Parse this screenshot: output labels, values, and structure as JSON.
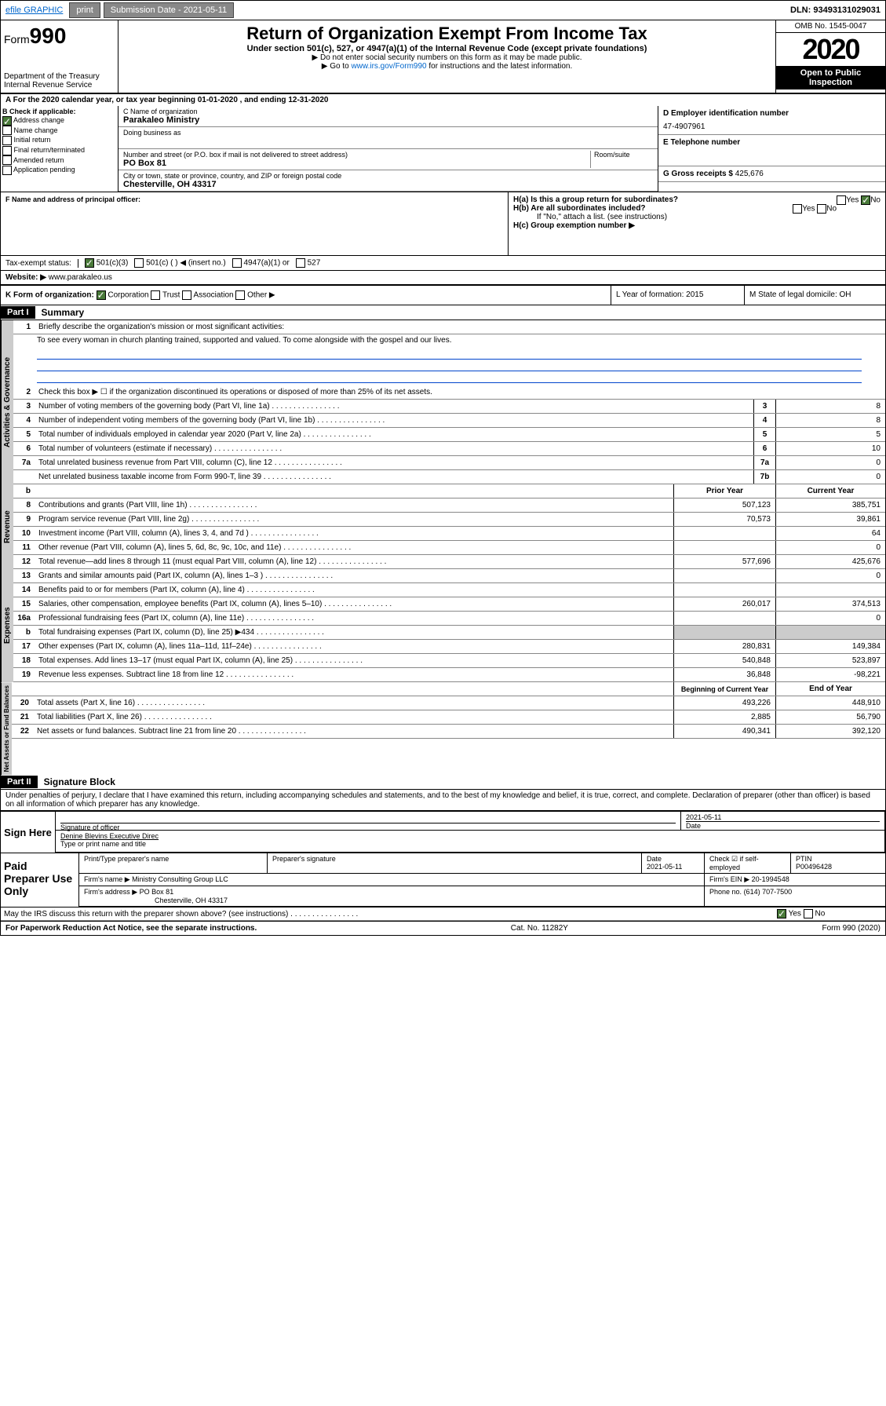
{
  "topbar": {
    "efile": "efile GRAPHIC",
    "print": "print",
    "subdate_label": "Submission Date - 2021-05-11",
    "dln": "DLN: 93493131029031"
  },
  "header": {
    "form_prefix": "Form",
    "form_num": "990",
    "dept": "Department of the Treasury\nInternal Revenue Service",
    "title": "Return of Organization Exempt From Income Tax",
    "subtitle": "Under section 501(c), 527, or 4947(a)(1) of the Internal Revenue Code (except private foundations)",
    "note1": "▶ Do not enter social security numbers on this form as it may be made public.",
    "note2_pre": "▶ Go to ",
    "note2_link": "www.irs.gov/Form990",
    "note2_post": " for instructions and the latest information.",
    "omb": "OMB No. 1545-0047",
    "year": "2020",
    "inspect": "Open to Public Inspection"
  },
  "period": "A   For the 2020 calendar year, or tax year beginning 01-01-2020    , and ending 12-31-2020",
  "secB": {
    "label": "B Check if applicable:",
    "checks": [
      "Address change",
      "Name change",
      "Initial return",
      "Final return/terminated",
      "Amended return",
      "Application pending"
    ],
    "checked": [
      true,
      false,
      false,
      false,
      false,
      false
    ],
    "c_label": "C Name of organization",
    "org": "Parakaleo Ministry",
    "dba_label": "Doing business as",
    "addr_label": "Number and street (or P.O. box if mail is not delivered to street address)",
    "room_label": "Room/suite",
    "addr": "PO Box 81",
    "city_label": "City or town, state or province, country, and ZIP or foreign postal code",
    "city": "Chesterville, OH  43317",
    "d_label": "D Employer identification number",
    "ein": "47-4907961",
    "e_label": "E Telephone number",
    "g_label": "G Gross receipts $",
    "g_val": "425,676"
  },
  "secF": {
    "label": "F  Name and address of principal officer:",
    "ha": "H(a)  Is this a group return for subordinates?",
    "ha_yes": "Yes",
    "ha_no": "No",
    "hb": "H(b)  Are all subordinates included?",
    "hb_note": "If \"No,\" attach a list. (see instructions)",
    "hc": "H(c)  Group exemption number ▶"
  },
  "taxex": {
    "label": "Tax-exempt status:",
    "opts": [
      "501(c)(3)",
      "501(c) (  ) ◀ (insert no.)",
      "4947(a)(1) or",
      "527"
    ]
  },
  "website": {
    "label": "Website: ▶",
    "val": "www.parakaleo.us"
  },
  "k": {
    "label": "K Form of organization:",
    "opts": [
      "Corporation",
      "Trust",
      "Association",
      "Other ▶"
    ],
    "l": "L Year of formation: 2015",
    "m": "M State of legal domicile: OH"
  },
  "part1": {
    "hdr": "Part I",
    "title": "Summary",
    "l1": "Briefly describe the organization's mission or most significant activities:",
    "mission": "To see every woman in church planting trained, supported and valued. To come alongside with the gospel and our lives.",
    "l2": "Check this box ▶ ☐  if the organization discontinued its operations or disposed of more than 25% of its net assets.",
    "rows": [
      {
        "n": "3",
        "t": "Number of voting members of the governing body (Part VI, line 1a)",
        "box": "3",
        "v": "8"
      },
      {
        "n": "4",
        "t": "Number of independent voting members of the governing body (Part VI, line 1b)",
        "box": "4",
        "v": "8"
      },
      {
        "n": "5",
        "t": "Total number of individuals employed in calendar year 2020 (Part V, line 2a)",
        "box": "5",
        "v": "5"
      },
      {
        "n": "6",
        "t": "Total number of volunteers (estimate if necessary)",
        "box": "6",
        "v": "10"
      },
      {
        "n": "7a",
        "t": "Total unrelated business revenue from Part VIII, column (C), line 12",
        "box": "7a",
        "v": "0"
      },
      {
        "n": "",
        "t": "Net unrelated business taxable income from Form 990-T, line 39",
        "box": "7b",
        "v": "0"
      }
    ],
    "colhdr": {
      "b": "b",
      "prior": "Prior Year",
      "current": "Current Year"
    },
    "revenue": [
      {
        "n": "8",
        "t": "Contributions and grants (Part VIII, line 1h)",
        "p": "507,123",
        "c": "385,751"
      },
      {
        "n": "9",
        "t": "Program service revenue (Part VIII, line 2g)",
        "p": "70,573",
        "c": "39,861"
      },
      {
        "n": "10",
        "t": "Investment income (Part VIII, column (A), lines 3, 4, and 7d )",
        "p": "",
        "c": "64"
      },
      {
        "n": "11",
        "t": "Other revenue (Part VIII, column (A), lines 5, 6d, 8c, 9c, 10c, and 11e)",
        "p": "",
        "c": "0"
      },
      {
        "n": "12",
        "t": "Total revenue—add lines 8 through 11 (must equal Part VIII, column (A), line 12)",
        "p": "577,696",
        "c": "425,676"
      }
    ],
    "expenses": [
      {
        "n": "13",
        "t": "Grants and similar amounts paid (Part IX, column (A), lines 1–3 )",
        "p": "",
        "c": "0"
      },
      {
        "n": "14",
        "t": "Benefits paid to or for members (Part IX, column (A), line 4)",
        "p": "",
        "c": ""
      },
      {
        "n": "15",
        "t": "Salaries, other compensation, employee benefits (Part IX, column (A), lines 5–10)",
        "p": "260,017",
        "c": "374,513"
      },
      {
        "n": "16a",
        "t": "Professional fundraising fees (Part IX, column (A), line 11e)",
        "p": "",
        "c": "0"
      },
      {
        "n": "b",
        "t": "Total fundraising expenses (Part IX, column (D), line 25) ▶434",
        "p": "",
        "c": "",
        "grey": true
      },
      {
        "n": "17",
        "t": "Other expenses (Part IX, column (A), lines 11a–11d, 11f–24e)",
        "p": "280,831",
        "c": "149,384"
      },
      {
        "n": "18",
        "t": "Total expenses. Add lines 13–17 (must equal Part IX, column (A), line 25)",
        "p": "540,848",
        "c": "523,897"
      },
      {
        "n": "19",
        "t": "Revenue less expenses. Subtract line 18 from line 12",
        "p": "36,848",
        "c": "-98,221"
      }
    ],
    "colhdr2": {
      "prior": "Beginning of Current Year",
      "current": "End of Year"
    },
    "netassets": [
      {
        "n": "20",
        "t": "Total assets (Part X, line 16)",
        "p": "493,226",
        "c": "448,910"
      },
      {
        "n": "21",
        "t": "Total liabilities (Part X, line 26)",
        "p": "2,885",
        "c": "56,790"
      },
      {
        "n": "22",
        "t": "Net assets or fund balances. Subtract line 21 from line 20",
        "p": "490,341",
        "c": "392,120"
      }
    ]
  },
  "tabs": {
    "gov": "Activities & Governance",
    "rev": "Revenue",
    "exp": "Expenses",
    "net": "Net Assets or Fund Balances"
  },
  "part2": {
    "hdr": "Part II",
    "title": "Signature Block",
    "decl": "Under penalties of perjury, I declare that I have examined this return, including accompanying schedules and statements, and to the best of my knowledge and belief, it is true, correct, and complete. Declaration of preparer (other than officer) is based on all information of which preparer has any knowledge."
  },
  "sign": {
    "label": "Sign Here",
    "sig_label": "Signature of officer",
    "date": "2021-05-11",
    "date_label": "Date",
    "name": "Denine Blevins Executive Direc",
    "name_label": "Type or print name and title"
  },
  "paid": {
    "label": "Paid Preparer Use Only",
    "h": [
      "Print/Type preparer's name",
      "Preparer's signature",
      "Date",
      "",
      "PTIN"
    ],
    "r1": [
      "",
      "",
      "2021-05-11",
      "Check ☑ if self-employed",
      "P00496428"
    ],
    "firm_label": "Firm's name   ▶",
    "firm": "Ministry Consulting Group LLC",
    "ein_label": "Firm's EIN ▶",
    "ein": "20-1994548",
    "addr_label": "Firm's address ▶",
    "addr": "PO Box 81",
    "addr2": "Chesterville, OH  43317",
    "phone_label": "Phone no.",
    "phone": "(614) 707-7500"
  },
  "discuss": "May the IRS discuss this return with the preparer shown above? (see instructions)",
  "footer": {
    "l": "For Paperwork Reduction Act Notice, see the separate instructions.",
    "c": "Cat. No. 11282Y",
    "r": "Form 990 (2020)"
  }
}
